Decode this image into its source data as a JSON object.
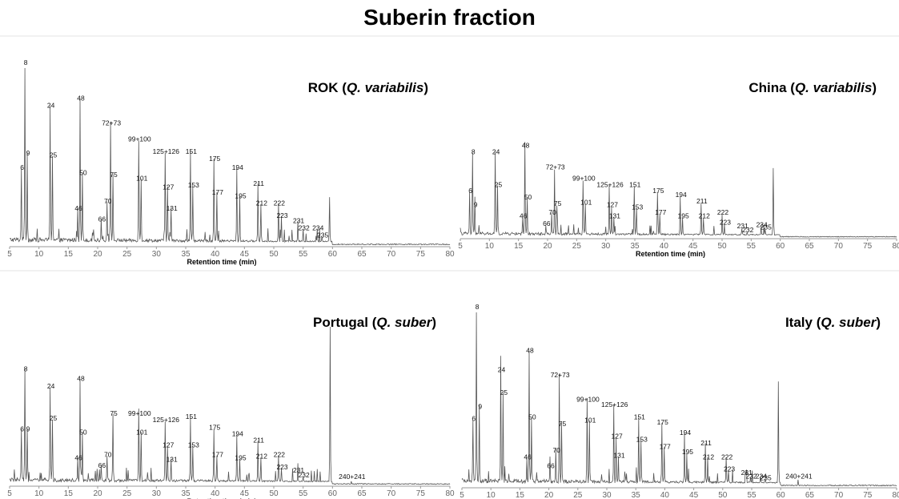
{
  "figure": {
    "title": "Suberin fraction"
  },
  "chart_data": [
    {
      "type": "line",
      "title": "ROK",
      "species": "Q. variabilis",
      "xlabel": "Retention time (min)",
      "ylabel": "",
      "xlim": [
        5,
        80
      ],
      "ylim": [
        0,
        100
      ],
      "x_ticks": [
        5,
        10,
        15,
        20,
        25,
        30,
        35,
        40,
        45,
        50,
        55,
        60,
        65,
        70,
        75,
        80
      ],
      "peaks": [
        {
          "label": "6",
          "x": 7.0,
          "y": 41
        },
        {
          "label": "8",
          "x": 7.6,
          "y": 100
        },
        {
          "label": "9",
          "x": 8.0,
          "y": 49
        },
        {
          "label": "24",
          "x": 11.9,
          "y": 76
        },
        {
          "label": "25",
          "x": 12.3,
          "y": 48
        },
        {
          "label": "46",
          "x": 16.6,
          "y": 18
        },
        {
          "label": "48",
          "x": 17.0,
          "y": 80
        },
        {
          "label": "50",
          "x": 17.4,
          "y": 38
        },
        {
          "label": "66",
          "x": 20.6,
          "y": 12
        },
        {
          "label": "70",
          "x": 21.6,
          "y": 22
        },
        {
          "label": "72+73",
          "x": 22.2,
          "y": 66
        },
        {
          "label": "75",
          "x": 22.6,
          "y": 37
        },
        {
          "label": "99+100",
          "x": 27.0,
          "y": 57
        },
        {
          "label": "101",
          "x": 27.4,
          "y": 35
        },
        {
          "label": "125+126",
          "x": 31.5,
          "y": 50
        },
        {
          "label": "127",
          "x": 31.9,
          "y": 30
        },
        {
          "label": "131",
          "x": 32.5,
          "y": 18
        },
        {
          "label": "151",
          "x": 35.8,
          "y": 50
        },
        {
          "label": "153",
          "x": 36.2,
          "y": 31
        },
        {
          "label": "175",
          "x": 39.8,
          "y": 46
        },
        {
          "label": "177",
          "x": 40.3,
          "y": 27
        },
        {
          "label": "194",
          "x": 43.7,
          "y": 41
        },
        {
          "label": "195",
          "x": 44.2,
          "y": 25
        },
        {
          "label": "211",
          "x": 47.3,
          "y": 32
        },
        {
          "label": "212",
          "x": 47.8,
          "y": 21
        },
        {
          "label": "222",
          "x": 50.8,
          "y": 21
        },
        {
          "label": "223",
          "x": 51.3,
          "y": 14
        },
        {
          "label": "231",
          "x": 54.1,
          "y": 11
        },
        {
          "label": "232",
          "x": 55.0,
          "y": 7
        },
        {
          "label": "234",
          "x": 57.4,
          "y": 7
        },
        {
          "label": "235",
          "x": 58.2,
          "y": 3
        },
        {
          "label": "",
          "x": 59.5,
          "y": 25
        }
      ]
    },
    {
      "type": "line",
      "title": "China",
      "species": "Q. variabilis",
      "xlabel": "Retention time (min)",
      "ylabel": "",
      "xlim": [
        5,
        80
      ],
      "ylim": [
        0,
        100
      ],
      "x_ticks": [
        5,
        10,
        15,
        20,
        25,
        30,
        35,
        40,
        45,
        50,
        55,
        60,
        65,
        70,
        75,
        80
      ],
      "peaks": [
        {
          "label": "6",
          "x": 6.6,
          "y": 33
        },
        {
          "label": "8",
          "x": 7.1,
          "y": 64
        },
        {
          "label": "9",
          "x": 7.5,
          "y": 22
        },
        {
          "label": "24",
          "x": 11.0,
          "y": 64
        },
        {
          "label": "25",
          "x": 11.4,
          "y": 38
        },
        {
          "label": "46",
          "x": 15.7,
          "y": 13
        },
        {
          "label": "48",
          "x": 16.1,
          "y": 69
        },
        {
          "label": "50",
          "x": 16.5,
          "y": 28
        },
        {
          "label": "66",
          "x": 19.7,
          "y": 7
        },
        {
          "label": "70",
          "x": 20.7,
          "y": 16
        },
        {
          "label": "72+73",
          "x": 21.2,
          "y": 52
        },
        {
          "label": "75",
          "x": 21.6,
          "y": 23
        },
        {
          "label": "99+100",
          "x": 26.1,
          "y": 43
        },
        {
          "label": "101",
          "x": 26.5,
          "y": 24
        },
        {
          "label": "125+126",
          "x": 30.6,
          "y": 38
        },
        {
          "label": "127",
          "x": 31.0,
          "y": 22
        },
        {
          "label": "131",
          "x": 31.4,
          "y": 13
        },
        {
          "label": "151",
          "x": 34.9,
          "y": 38
        },
        {
          "label": "153",
          "x": 35.3,
          "y": 20
        },
        {
          "label": "175",
          "x": 38.9,
          "y": 33
        },
        {
          "label": "177",
          "x": 39.3,
          "y": 16
        },
        {
          "label": "194",
          "x": 42.8,
          "y": 30
        },
        {
          "label": "195",
          "x": 43.2,
          "y": 13
        },
        {
          "label": "211",
          "x": 46.4,
          "y": 25
        },
        {
          "label": "212",
          "x": 46.8,
          "y": 13
        },
        {
          "label": "222",
          "x": 50.0,
          "y": 16
        },
        {
          "label": "223",
          "x": 50.4,
          "y": 8
        },
        {
          "label": "231",
          "x": 53.4,
          "y": 5
        },
        {
          "label": "232",
          "x": 54.3,
          "y": 2
        },
        {
          "label": "234",
          "x": 56.7,
          "y": 6
        },
        {
          "label": "235",
          "x": 57.4,
          "y": 4
        },
        {
          "label": "",
          "x": 58.8,
          "y": 53
        }
      ]
    },
    {
      "type": "line",
      "title": "Portugal",
      "species": "Q. suber",
      "xlabel": "Retention time (min)",
      "ylabel": "",
      "xlim": [
        5,
        80
      ],
      "ylim": [
        0,
        100
      ],
      "x_ticks": [
        5,
        10,
        15,
        20,
        25,
        30,
        35,
        40,
        45,
        50,
        55,
        60,
        65,
        70,
        75,
        80
      ],
      "peaks": [
        {
          "label": "6",
          "x": 7.0,
          "y": 32
        },
        {
          "label": "8",
          "x": 7.6,
          "y": 70
        },
        {
          "label": "9",
          "x": 8.0,
          "y": 32
        },
        {
          "label": "24",
          "x": 11.9,
          "y": 59
        },
        {
          "label": "25",
          "x": 12.3,
          "y": 39
        },
        {
          "label": "46",
          "x": 16.6,
          "y": 14
        },
        {
          "label": "48",
          "x": 17.0,
          "y": 64
        },
        {
          "label": "50",
          "x": 17.4,
          "y": 30
        },
        {
          "label": "66",
          "x": 20.6,
          "y": 9
        },
        {
          "label": "70",
          "x": 21.6,
          "y": 16
        },
        {
          "label": "75",
          "x": 22.6,
          "y": 42
        },
        {
          "label": "99+100",
          "x": 27.0,
          "y": 42
        },
        {
          "label": "101",
          "x": 27.4,
          "y": 30
        },
        {
          "label": "125+126",
          "x": 31.5,
          "y": 38
        },
        {
          "label": "127",
          "x": 31.9,
          "y": 22
        },
        {
          "label": "131",
          "x": 32.5,
          "y": 13
        },
        {
          "label": "151",
          "x": 35.8,
          "y": 40
        },
        {
          "label": "153",
          "x": 36.2,
          "y": 22
        },
        {
          "label": "175",
          "x": 39.8,
          "y": 33
        },
        {
          "label": "177",
          "x": 40.3,
          "y": 16
        },
        {
          "label": "194",
          "x": 43.7,
          "y": 29
        },
        {
          "label": "195",
          "x": 44.2,
          "y": 14
        },
        {
          "label": "211",
          "x": 47.3,
          "y": 25
        },
        {
          "label": "212",
          "x": 47.8,
          "y": 15
        },
        {
          "label": "222",
          "x": 50.8,
          "y": 16
        },
        {
          "label": "223",
          "x": 51.3,
          "y": 8
        },
        {
          "label": "231",
          "x": 54.1,
          "y": 6
        },
        {
          "label": "232",
          "x": 55.0,
          "y": 3
        },
        {
          "label": "",
          "x": 59.6,
          "y": 100
        },
        {
          "label": "240+241",
          "x": 63.2,
          "y": 2
        }
      ]
    },
    {
      "type": "line",
      "title": "Italy",
      "species": "Q. suber",
      "xlabel": "Retention time (min)",
      "ylabel": "",
      "xlim": [
        5,
        80
      ],
      "ylim": [
        0,
        100
      ],
      "x_ticks": [
        5,
        10,
        15,
        20,
        25,
        30,
        35,
        40,
        45,
        50,
        55,
        60,
        65,
        70,
        75,
        80
      ],
      "peaks": [
        {
          "label": "6",
          "x": 6.9,
          "y": 36
        },
        {
          "label": "8",
          "x": 7.5,
          "y": 100
        },
        {
          "label": "9",
          "x": 8.0,
          "y": 43
        },
        {
          "label": "24",
          "x": 11.7,
          "y": 64
        },
        {
          "label": "25",
          "x": 12.1,
          "y": 51
        },
        {
          "label": "46",
          "x": 16.2,
          "y": 14
        },
        {
          "label": "48",
          "x": 16.6,
          "y": 75
        },
        {
          "label": "50",
          "x": 17.0,
          "y": 37
        },
        {
          "label": "66",
          "x": 20.2,
          "y": 9
        },
        {
          "label": "70",
          "x": 21.2,
          "y": 18
        },
        {
          "label": "72+73",
          "x": 21.8,
          "y": 61
        },
        {
          "label": "75",
          "x": 22.2,
          "y": 33
        },
        {
          "label": "99+100",
          "x": 26.6,
          "y": 47
        },
        {
          "label": "101",
          "x": 27.0,
          "y": 35
        },
        {
          "label": "125+126",
          "x": 31.2,
          "y": 44
        },
        {
          "label": "127",
          "x": 31.6,
          "y": 26
        },
        {
          "label": "131",
          "x": 32.0,
          "y": 15
        },
        {
          "label": "151",
          "x": 35.5,
          "y": 37
        },
        {
          "label": "153",
          "x": 35.9,
          "y": 24
        },
        {
          "label": "175",
          "x": 39.5,
          "y": 34
        },
        {
          "label": "177",
          "x": 39.9,
          "y": 20
        },
        {
          "label": "194",
          "x": 43.4,
          "y": 28
        },
        {
          "label": "195",
          "x": 43.8,
          "y": 17
        },
        {
          "label": "211",
          "x": 47.0,
          "y": 22
        },
        {
          "label": "212",
          "x": 47.4,
          "y": 14
        },
        {
          "label": "222",
          "x": 50.6,
          "y": 14
        },
        {
          "label": "223",
          "x": 51.0,
          "y": 7
        },
        {
          "label": "231",
          "x": 54.0,
          "y": 5
        },
        {
          "label": "232",
          "x": 54.8,
          "y": 3
        },
        {
          "label": "234",
          "x": 56.5,
          "y": 3
        },
        {
          "label": "235",
          "x": 57.3,
          "y": 2
        },
        {
          "label": "",
          "x": 59.6,
          "y": 58
        },
        {
          "label": "240+241",
          "x": 63.0,
          "y": 3
        }
      ]
    }
  ]
}
